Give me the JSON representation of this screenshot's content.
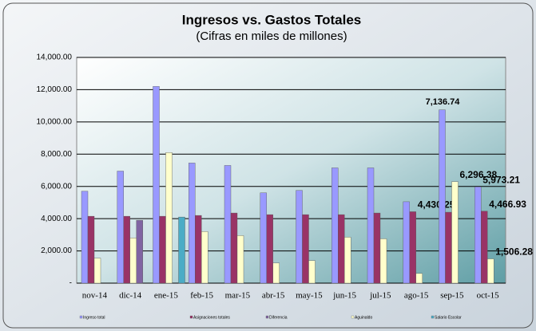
{
  "chart_data": {
    "type": "bar",
    "title": "Ingresos vs. Gastos Totales",
    "subtitle": "(Cifras en miles de millones)",
    "categories": [
      "nov-14",
      "dic-14",
      "ene-15",
      "feb-15",
      "mar-15",
      "abr-15",
      "may-15",
      "jun-15",
      "jul-15",
      "ago-15",
      "sep-15",
      "oct-15"
    ],
    "series": [
      {
        "name": "Ingreso total",
        "color": "#9999ff",
        "values": [
          5700,
          6950,
          12200,
          7450,
          7300,
          5600,
          5750,
          7150,
          7150,
          5050,
          10750,
          5973.21
        ],
        "value_labels": [
          null,
          null,
          null,
          null,
          null,
          null,
          null,
          null,
          null,
          null,
          null,
          "5,973.21"
        ]
      },
      {
        "name": "Asignaciones totales",
        "color": "#993366",
        "values": [
          4150,
          4150,
          4150,
          4200,
          4350,
          4250,
          4250,
          4250,
          4350,
          4430.25,
          4400,
          4466.93
        ],
        "value_labels": [
          null,
          null,
          null,
          null,
          null,
          null,
          null,
          null,
          null,
          "4,430.25",
          null,
          "4,466.93"
        ]
      },
      {
        "name": "Diferencia",
        "color": "#8064a2",
        "values": [
          null,
          3900,
          null,
          null,
          null,
          null,
          null,
          null,
          null,
          null,
          null,
          null
        ]
      },
      {
        "name": "Aguinaldo",
        "color": "#ffffcc",
        "values": [
          1550,
          2800,
          8100,
          3200,
          2950,
          1250,
          1400,
          2850,
          2750,
          600,
          6296.38,
          1506.28
        ],
        "value_labels": [
          null,
          null,
          null,
          null,
          null,
          null,
          null,
          null,
          null,
          null,
          "6,296.38",
          "1,506.28"
        ]
      },
      {
        "name": "Salario Escolar",
        "color": "#4bacc6",
        "values": [
          null,
          null,
          4100,
          null,
          null,
          null,
          null,
          null,
          null,
          null,
          null,
          null
        ]
      }
    ],
    "annotations": [
      "7,136.74"
    ],
    "ylim": [
      0,
      14000
    ],
    "yticks": [
      {
        "value": 0,
        "label": "-"
      },
      {
        "value": 2000,
        "label": "2,000.00"
      },
      {
        "value": 4000,
        "label": "4,000.00"
      },
      {
        "value": 6000,
        "label": "6,000.00"
      },
      {
        "value": 8000,
        "label": "8,000.00"
      },
      {
        "value": 10000,
        "label": "10,000.00"
      },
      {
        "value": 12000,
        "label": "12,000.00"
      },
      {
        "value": 14000,
        "label": "14,000.00"
      }
    ],
    "grid": true
  }
}
